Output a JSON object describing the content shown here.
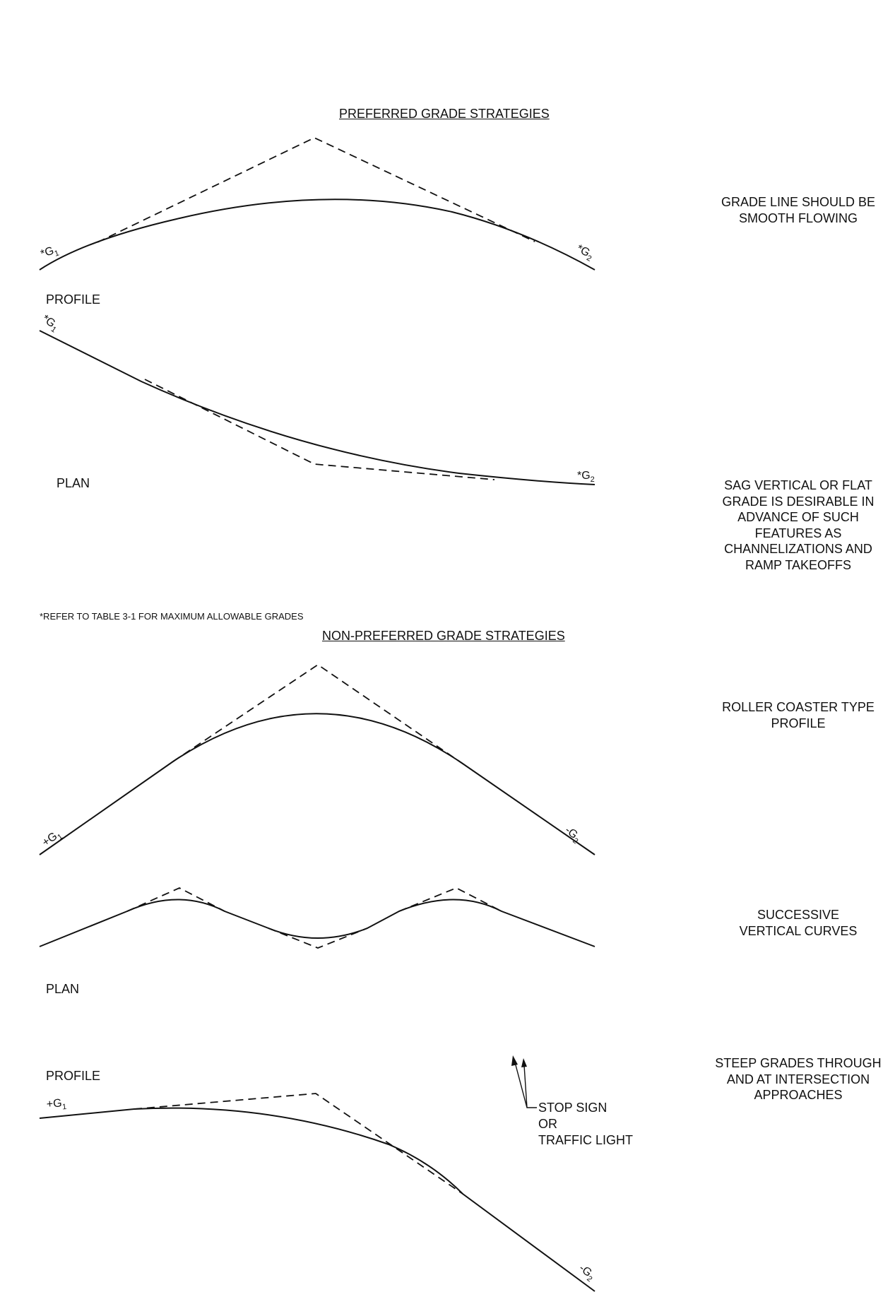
{
  "preferred": {
    "title": "PREFERRED GRADE STRATEGIES",
    "profile_label": "PROFILE",
    "plan_label": "PLAN",
    "desc_smooth": [
      "GRADE LINE SHOULD BE",
      "SMOOTH FLOWING"
    ],
    "desc_sag": [
      "SAG VERTICAL OR FLAT",
      "GRADE IS DESIRABLE IN",
      "ADVANCE OF SUCH",
      "FEATURES AS",
      "CHANNELIZATIONS AND",
      "RAMP TAKEOFFS"
    ],
    "g1_top": {
      "prefix": "*G",
      "sub": "1"
    },
    "g2_top": {
      "prefix": "*G",
      "sub": "2"
    },
    "g1_plan": {
      "prefix": "*G",
      "sub": "1"
    },
    "g2_plan": {
      "prefix": "*G",
      "sub": "2"
    }
  },
  "footnote": "*REFER TO TABLE 3-1 FOR MAXIMUM ALLOWABLE GRADES",
  "non_preferred": {
    "title": "NON-PREFERRED GRADE STRATEGIES",
    "desc_roller": [
      "ROLLER COASTER TYPE",
      "PROFILE"
    ],
    "desc_successive": [
      "SUCCESSIVE",
      "VERTICAL CURVES"
    ],
    "desc_steep": [
      "STEEP GRADES THROUGH",
      "AND AT INTERSECTION",
      "APPROACHES"
    ],
    "plan_label": "PLAN",
    "profile_label": "PROFILE",
    "stop_sign": [
      "STOP SIGN",
      "OR",
      "TRAFFIC LIGHT"
    ],
    "g1_roller": {
      "prefix": "+G",
      "sub": "1"
    },
    "g2_roller": {
      "prefix": "-G",
      "sub": "2"
    },
    "g1_steep": {
      "prefix": "+G",
      "sub": "1"
    },
    "g2_steep": {
      "prefix": "-G",
      "sub": "2"
    }
  }
}
